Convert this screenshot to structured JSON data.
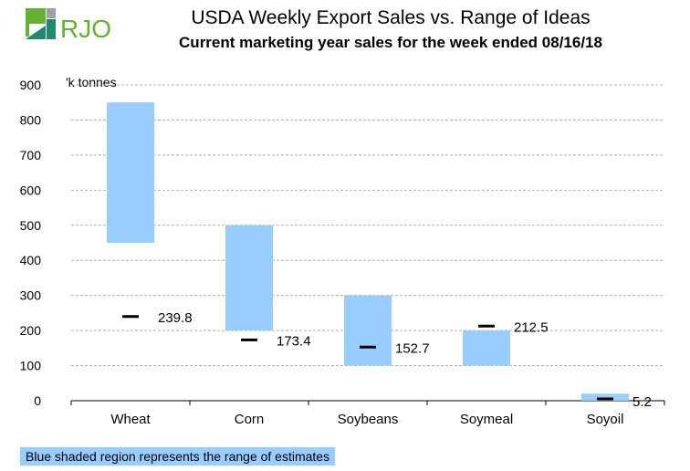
{
  "logo_text": "RJO",
  "chart_data": {
    "type": "floating-bar",
    "title": "USDA Weekly Export Sales vs. Range of Ideas",
    "subtitle": "Current marketing year sales for the week ended 08/16/18",
    "ylabel": "'k tonnes",
    "ylim": [
      0,
      900
    ],
    "yticks": [
      0,
      100,
      200,
      300,
      400,
      500,
      600,
      700,
      800,
      900
    ],
    "grid": true,
    "categories": [
      "Wheat",
      "Corn",
      "Soybeans",
      "Soymeal",
      "Soyoil"
    ],
    "range_low": [
      450,
      200,
      100,
      100,
      0
    ],
    "range_high": [
      850,
      500,
      300,
      200,
      20
    ],
    "actual": [
      239.8,
      173.4,
      152.7,
      212.5,
      5.2
    ],
    "actual_labels": [
      "239.8",
      "173.4",
      "152.7",
      "212.5",
      "5.2"
    ],
    "range_color": "#99ccff",
    "note": "Blue shaded region represents the range of estimates"
  }
}
